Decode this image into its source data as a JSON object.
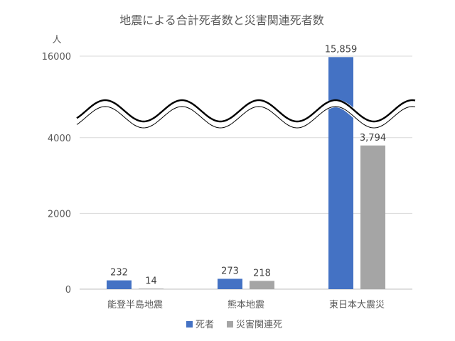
{
  "chart_data": {
    "type": "bar",
    "title": "地震による合計死者数と災害関連死者数",
    "ylabel": "人",
    "xlabel": "",
    "categories": [
      "能登半島地震",
      "熊本地震",
      "東日本大震災"
    ],
    "series": [
      {
        "name": "死者",
        "color": "#4472C4",
        "values": [
          232,
          273,
          15859
        ],
        "labels": [
          "232",
          "273",
          "15,859"
        ]
      },
      {
        "name": "災害関連死",
        "color": "#A5A5A5",
        "values": [
          14,
          218,
          3794
        ],
        "labels": [
          "14",
          "218",
          "3,794"
        ]
      }
    ],
    "y_ticks": [
      {
        "value": 0,
        "label": "0"
      },
      {
        "value": 2000,
        "label": "2000"
      },
      {
        "value": 4000,
        "label": "4000"
      },
      {
        "value": 16000,
        "label": "16000"
      }
    ],
    "axis_break": {
      "from": 4000,
      "to": 16000
    },
    "ylim": [
      0,
      16000
    ],
    "grid": true,
    "legend": "bottom"
  }
}
